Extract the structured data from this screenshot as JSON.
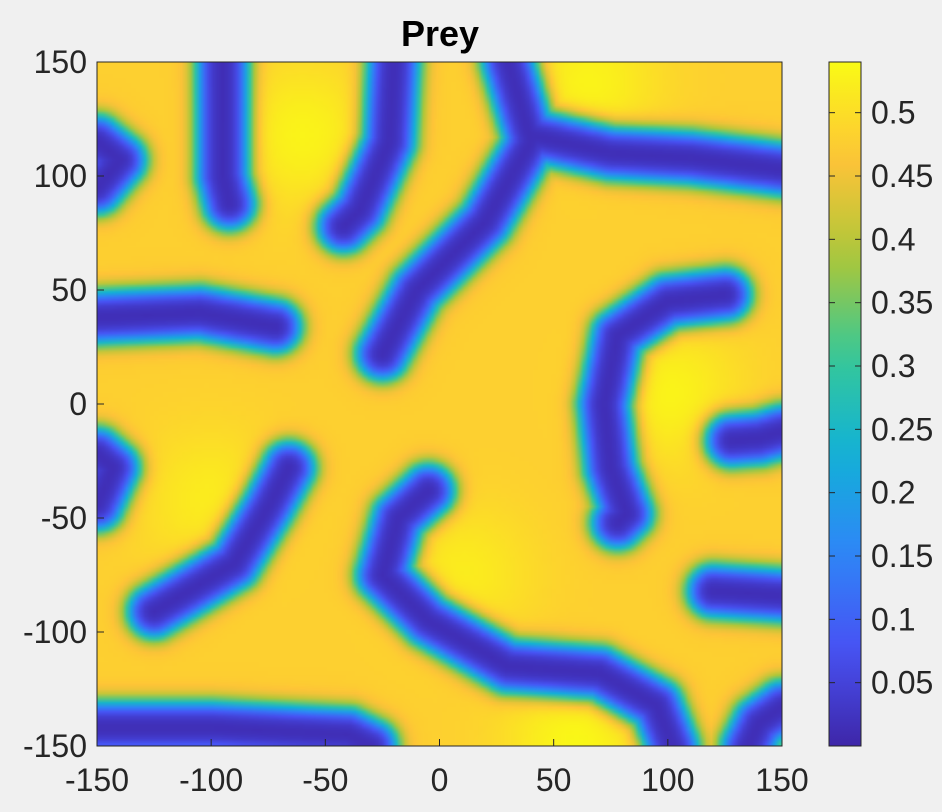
{
  "chart_data": {
    "type": "heatmap",
    "title": "Prey",
    "xlabel": "",
    "ylabel": "",
    "xlim": [
      -150,
      150
    ],
    "ylim": [
      -150,
      150
    ],
    "x_ticks": [
      -150,
      -100,
      -50,
      0,
      50,
      100,
      150
    ],
    "y_ticks": [
      -150,
      -100,
      -50,
      0,
      50,
      100,
      150
    ],
    "x_tick_labels": [
      "-150",
      "-100",
      "-50",
      "0",
      "50",
      "100",
      "150"
    ],
    "y_tick_labels": [
      "-150",
      "-100",
      "-50",
      "0",
      "50",
      "100",
      "150"
    ],
    "colorbar": {
      "colormap": "parula",
      "range": [
        0.0,
        0.54
      ],
      "ticks": [
        0.05,
        0.1,
        0.15,
        0.2,
        0.25,
        0.3,
        0.35,
        0.4,
        0.45,
        0.5
      ],
      "tick_labels": [
        "0.05",
        "0.1",
        "0.15",
        "0.2",
        "0.25",
        "0.3",
        "0.35",
        "0.4",
        "0.45",
        "0.5"
      ]
    },
    "field": {
      "description_values": "low-density stripes (approx 0.01) on high-density background (approx 0.47-0.53)",
      "low_value": 0.01,
      "high_value": 0.48,
      "peak_value": 0.53,
      "stripes": [
        {
          "points": [
            [
              -150,
              115
            ],
            [
              -140,
              107
            ],
            [
              -150,
              95
            ]
          ]
        },
        {
          "points": [
            [
              -95,
              150
            ],
            [
              -95,
              100
            ],
            [
              -92,
              88
            ]
          ]
        },
        {
          "points": [
            [
              -20,
              150
            ],
            [
              -22,
              115
            ],
            [
              -35,
              85
            ],
            [
              -42,
              78
            ]
          ]
        },
        {
          "points": [
            [
              -150,
              38
            ],
            [
              -105,
              40
            ],
            [
              -72,
              34
            ]
          ]
        },
        {
          "points": [
            [
              30,
              150
            ],
            [
              40,
              115
            ],
            [
              20,
              80
            ],
            [
              -10,
              50
            ],
            [
              -25,
              22
            ]
          ]
        },
        {
          "points": [
            [
              40,
              118
            ],
            [
              75,
              110
            ],
            [
              110,
              108
            ],
            [
              150,
              103
            ]
          ]
        },
        {
          "points": [
            [
              125,
              48
            ],
            [
              100,
              45
            ],
            [
              78,
              30
            ],
            [
              72,
              0
            ],
            [
              75,
              -28
            ],
            [
              82,
              -48
            ],
            [
              78,
              -52
            ]
          ]
        },
        {
          "points": [
            [
              150,
              -12
            ],
            [
              140,
              -15
            ],
            [
              128,
              -16
            ]
          ]
        },
        {
          "points": [
            [
              -150,
              -22
            ],
            [
              -143,
              -28
            ],
            [
              -150,
              -44
            ]
          ]
        },
        {
          "points": [
            [
              -66,
              -28
            ],
            [
              -75,
              -45
            ],
            [
              -90,
              -70
            ],
            [
              -125,
              -91
            ]
          ]
        },
        {
          "points": [
            [
              -5,
              -38
            ],
            [
              -18,
              -50
            ],
            [
              -25,
              -75
            ],
            [
              -5,
              -95
            ],
            [
              30,
              -115
            ],
            [
              70,
              -118
            ],
            [
              95,
              -132
            ],
            [
              102,
              -150
            ]
          ]
        },
        {
          "points": [
            [
              150,
              -84
            ],
            [
              135,
              -83
            ],
            [
              120,
              -82
            ]
          ]
        },
        {
          "points": [
            [
              -150,
              -142
            ],
            [
              -100,
              -142
            ],
            [
              -40,
              -145
            ],
            [
              -30,
              -150
            ]
          ]
        },
        {
          "points": [
            [
              150,
              -133
            ],
            [
              140,
              -140
            ],
            [
              135,
              -150
            ]
          ]
        }
      ],
      "hotspots": [
        {
          "center": [
            65,
            140
          ],
          "value": 0.53
        },
        {
          "center": [
            -60,
            118
          ],
          "value": 0.53
        },
        {
          "center": [
            60,
            -148
          ],
          "value": 0.535
        },
        {
          "center": [
            100,
            5
          ],
          "value": 0.53
        },
        {
          "center": [
            -100,
            -42
          ],
          "value": 0.52
        },
        {
          "center": [
            10,
            -75
          ],
          "value": 0.52
        }
      ]
    }
  }
}
